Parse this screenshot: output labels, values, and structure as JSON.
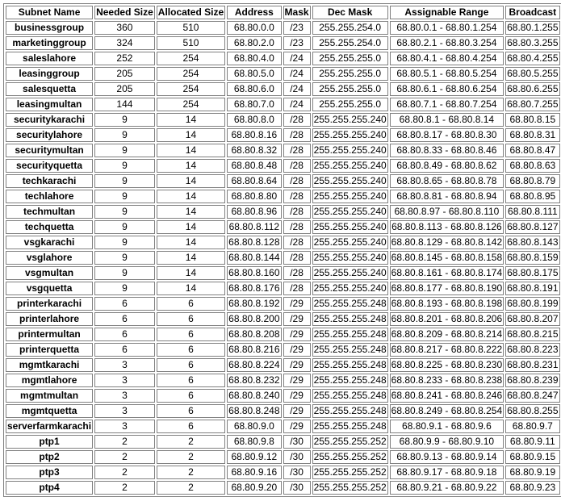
{
  "table": {
    "headers": {
      "name": "Subnet Name",
      "needed": "Needed Size",
      "allocated": "Allocated Size",
      "address": "Address",
      "mask": "Mask",
      "dec_mask": "Dec Mask",
      "range": "Assignable Range",
      "broadcast": "Broadcast"
    },
    "rows": [
      {
        "name": "businessgroup",
        "needed": "360",
        "allocated": "510",
        "address": "68.80.0.0",
        "mask": "/23",
        "dec_mask": "255.255.254.0",
        "range": "68.80.0.1 - 68.80.1.254",
        "broadcast": "68.80.1.255"
      },
      {
        "name": "marketinggroup",
        "needed": "324",
        "allocated": "510",
        "address": "68.80.2.0",
        "mask": "/23",
        "dec_mask": "255.255.254.0",
        "range": "68.80.2.1 - 68.80.3.254",
        "broadcast": "68.80.3.255"
      },
      {
        "name": "saleslahore",
        "needed": "252",
        "allocated": "254",
        "address": "68.80.4.0",
        "mask": "/24",
        "dec_mask": "255.255.255.0",
        "range": "68.80.4.1 - 68.80.4.254",
        "broadcast": "68.80.4.255"
      },
      {
        "name": "leasinggroup",
        "needed": "205",
        "allocated": "254",
        "address": "68.80.5.0",
        "mask": "/24",
        "dec_mask": "255.255.255.0",
        "range": "68.80.5.1 - 68.80.5.254",
        "broadcast": "68.80.5.255"
      },
      {
        "name": "salesquetta",
        "needed": "205",
        "allocated": "254",
        "address": "68.80.6.0",
        "mask": "/24",
        "dec_mask": "255.255.255.0",
        "range": "68.80.6.1 - 68.80.6.254",
        "broadcast": "68.80.6.255"
      },
      {
        "name": "leasingmultan",
        "needed": "144",
        "allocated": "254",
        "address": "68.80.7.0",
        "mask": "/24",
        "dec_mask": "255.255.255.0",
        "range": "68.80.7.1 - 68.80.7.254",
        "broadcast": "68.80.7.255"
      },
      {
        "name": "securitykarachi",
        "needed": "9",
        "allocated": "14",
        "address": "68.80.8.0",
        "mask": "/28",
        "dec_mask": "255.255.255.240",
        "range": "68.80.8.1 - 68.80.8.14",
        "broadcast": "68.80.8.15"
      },
      {
        "name": "securitylahore",
        "needed": "9",
        "allocated": "14",
        "address": "68.80.8.16",
        "mask": "/28",
        "dec_mask": "255.255.255.240",
        "range": "68.80.8.17 - 68.80.8.30",
        "broadcast": "68.80.8.31"
      },
      {
        "name": "securitymultan",
        "needed": "9",
        "allocated": "14",
        "address": "68.80.8.32",
        "mask": "/28",
        "dec_mask": "255.255.255.240",
        "range": "68.80.8.33 - 68.80.8.46",
        "broadcast": "68.80.8.47"
      },
      {
        "name": "securityquetta",
        "needed": "9",
        "allocated": "14",
        "address": "68.80.8.48",
        "mask": "/28",
        "dec_mask": "255.255.255.240",
        "range": "68.80.8.49 - 68.80.8.62",
        "broadcast": "68.80.8.63"
      },
      {
        "name": "techkarachi",
        "needed": "9",
        "allocated": "14",
        "address": "68.80.8.64",
        "mask": "/28",
        "dec_mask": "255.255.255.240",
        "range": "68.80.8.65 - 68.80.8.78",
        "broadcast": "68.80.8.79"
      },
      {
        "name": "techlahore",
        "needed": "9",
        "allocated": "14",
        "address": "68.80.8.80",
        "mask": "/28",
        "dec_mask": "255.255.255.240",
        "range": "68.80.8.81 - 68.80.8.94",
        "broadcast": "68.80.8.95"
      },
      {
        "name": "techmultan",
        "needed": "9",
        "allocated": "14",
        "address": "68.80.8.96",
        "mask": "/28",
        "dec_mask": "255.255.255.240",
        "range": "68.80.8.97 - 68.80.8.110",
        "broadcast": "68.80.8.111"
      },
      {
        "name": "techquetta",
        "needed": "9",
        "allocated": "14",
        "address": "68.80.8.112",
        "mask": "/28",
        "dec_mask": "255.255.255.240",
        "range": "68.80.8.113 - 68.80.8.126",
        "broadcast": "68.80.8.127"
      },
      {
        "name": "vsgkarachi",
        "needed": "9",
        "allocated": "14",
        "address": "68.80.8.128",
        "mask": "/28",
        "dec_mask": "255.255.255.240",
        "range": "68.80.8.129 - 68.80.8.142",
        "broadcast": "68.80.8.143"
      },
      {
        "name": "vsglahore",
        "needed": "9",
        "allocated": "14",
        "address": "68.80.8.144",
        "mask": "/28",
        "dec_mask": "255.255.255.240",
        "range": "68.80.8.145 - 68.80.8.158",
        "broadcast": "68.80.8.159"
      },
      {
        "name": "vsgmultan",
        "needed": "9",
        "allocated": "14",
        "address": "68.80.8.160",
        "mask": "/28",
        "dec_mask": "255.255.255.240",
        "range": "68.80.8.161 - 68.80.8.174",
        "broadcast": "68.80.8.175"
      },
      {
        "name": "vsgquetta",
        "needed": "9",
        "allocated": "14",
        "address": "68.80.8.176",
        "mask": "/28",
        "dec_mask": "255.255.255.240",
        "range": "68.80.8.177 - 68.80.8.190",
        "broadcast": "68.80.8.191"
      },
      {
        "name": "printerkarachi",
        "needed": "6",
        "allocated": "6",
        "address": "68.80.8.192",
        "mask": "/29",
        "dec_mask": "255.255.255.248",
        "range": "68.80.8.193 - 68.80.8.198",
        "broadcast": "68.80.8.199"
      },
      {
        "name": "printerlahore",
        "needed": "6",
        "allocated": "6",
        "address": "68.80.8.200",
        "mask": "/29",
        "dec_mask": "255.255.255.248",
        "range": "68.80.8.201 - 68.80.8.206",
        "broadcast": "68.80.8.207"
      },
      {
        "name": "printermultan",
        "needed": "6",
        "allocated": "6",
        "address": "68.80.8.208",
        "mask": "/29",
        "dec_mask": "255.255.255.248",
        "range": "68.80.8.209 - 68.80.8.214",
        "broadcast": "68.80.8.215"
      },
      {
        "name": "printerquetta",
        "needed": "6",
        "allocated": "6",
        "address": "68.80.8.216",
        "mask": "/29",
        "dec_mask": "255.255.255.248",
        "range": "68.80.8.217 - 68.80.8.222",
        "broadcast": "68.80.8.223"
      },
      {
        "name": "mgmtkarachi",
        "needed": "3",
        "allocated": "6",
        "address": "68.80.8.224",
        "mask": "/29",
        "dec_mask": "255.255.255.248",
        "range": "68.80.8.225 - 68.80.8.230",
        "broadcast": "68.80.8.231"
      },
      {
        "name": "mgmtlahore",
        "needed": "3",
        "allocated": "6",
        "address": "68.80.8.232",
        "mask": "/29",
        "dec_mask": "255.255.255.248",
        "range": "68.80.8.233 - 68.80.8.238",
        "broadcast": "68.80.8.239"
      },
      {
        "name": "mgmtmultan",
        "needed": "3",
        "allocated": "6",
        "address": "68.80.8.240",
        "mask": "/29",
        "dec_mask": "255.255.255.248",
        "range": "68.80.8.241 - 68.80.8.246",
        "broadcast": "68.80.8.247"
      },
      {
        "name": "mgmtquetta",
        "needed": "3",
        "allocated": "6",
        "address": "68.80.8.248",
        "mask": "/29",
        "dec_mask": "255.255.255.248",
        "range": "68.80.8.249 - 68.80.8.254",
        "broadcast": "68.80.8.255"
      },
      {
        "name": "serverfarmkarachi",
        "needed": "3",
        "allocated": "6",
        "address": "68.80.9.0",
        "mask": "/29",
        "dec_mask": "255.255.255.248",
        "range": "68.80.9.1 - 68.80.9.6",
        "broadcast": "68.80.9.7"
      },
      {
        "name": "ptp1",
        "needed": "2",
        "allocated": "2",
        "address": "68.80.9.8",
        "mask": "/30",
        "dec_mask": "255.255.255.252",
        "range": "68.80.9.9 - 68.80.9.10",
        "broadcast": "68.80.9.11"
      },
      {
        "name": "ptp2",
        "needed": "2",
        "allocated": "2",
        "address": "68.80.9.12",
        "mask": "/30",
        "dec_mask": "255.255.255.252",
        "range": "68.80.9.13 - 68.80.9.14",
        "broadcast": "68.80.9.15"
      },
      {
        "name": "ptp3",
        "needed": "2",
        "allocated": "2",
        "address": "68.80.9.16",
        "mask": "/30",
        "dec_mask": "255.255.255.252",
        "range": "68.80.9.17 - 68.80.9.18",
        "broadcast": "68.80.9.19"
      },
      {
        "name": "ptp4",
        "needed": "2",
        "allocated": "2",
        "address": "68.80.9.20",
        "mask": "/30",
        "dec_mask": "255.255.255.252",
        "range": "68.80.9.21 - 68.80.9.22",
        "broadcast": "68.80.9.23"
      }
    ]
  }
}
